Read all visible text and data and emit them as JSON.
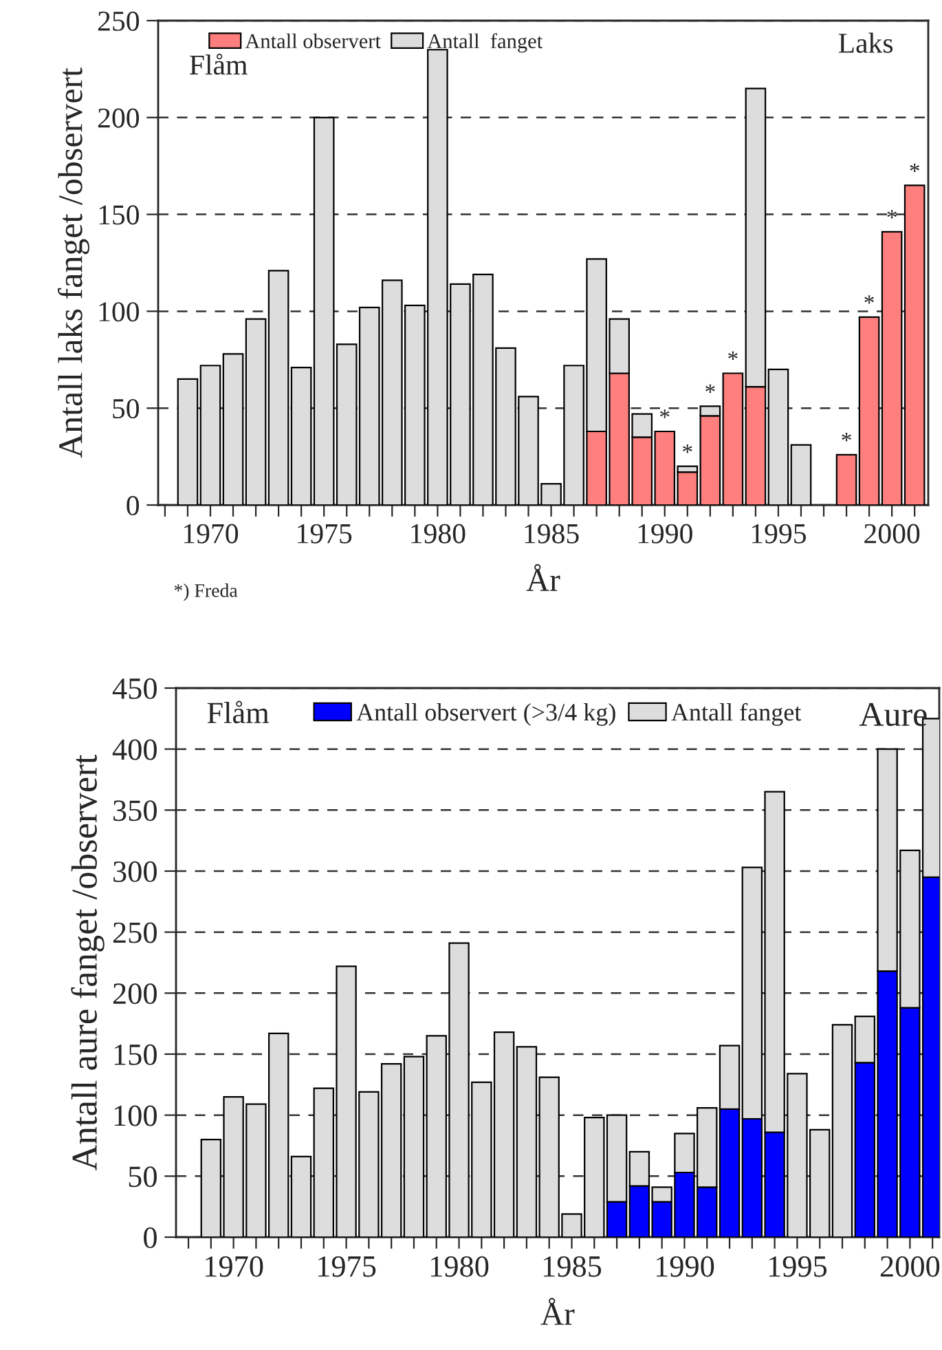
{
  "chart_data": [
    {
      "type": "bar",
      "stacked": true,
      "xlabel": "År",
      "ylabel": "Antall laks fanget /observert",
      "x": [
        1969,
        1970,
        1971,
        1972,
        1973,
        1974,
        1975,
        1976,
        1977,
        1978,
        1979,
        1980,
        1981,
        1982,
        1983,
        1984,
        1985,
        1986,
        1987,
        1988,
        1989,
        1990,
        1991,
        1992,
        1993,
        1994,
        1995,
        1996,
        1997,
        1998,
        1999,
        2000,
        2001
      ],
      "series": [
        {
          "name": "Antall observert",
          "color": "#ff7f7f",
          "values": [
            null,
            null,
            null,
            null,
            null,
            null,
            null,
            null,
            null,
            null,
            null,
            null,
            null,
            null,
            null,
            null,
            null,
            null,
            38,
            68,
            35,
            38,
            17,
            46,
            68,
            61,
            null,
            null,
            null,
            26,
            97,
            141,
            165
          ]
        },
        {
          "name": "Antall  fanget",
          "color": "#dddddd",
          "values": [
            65,
            72,
            78,
            96,
            121,
            71,
            200,
            83,
            102,
            116,
            103,
            235,
            114,
            119,
            81,
            56,
            11,
            72,
            89,
            28,
            12,
            null,
            3,
            5,
            null,
            154,
            70,
            31,
            null,
            null,
            null,
            null,
            null
          ]
        }
      ],
      "xlim": [
        1967.7,
        2001.6
      ],
      "xticks": [
        {
          "value": 1968,
          "label": null
        },
        {
          "value": 1969,
          "label": null
        },
        1970,
        {
          "value": 1971,
          "label": null
        },
        {
          "value": 1972,
          "label": null
        },
        {
          "value": 1973,
          "label": null
        },
        {
          "value": 1974,
          "label": null
        },
        1975,
        {
          "value": 1976,
          "label": null
        },
        {
          "value": 1977,
          "label": null
        },
        {
          "value": 1978,
          "label": null
        },
        {
          "value": 1979,
          "label": null
        },
        1980,
        {
          "value": 1981,
          "label": null
        },
        {
          "value": 1982,
          "label": null
        },
        {
          "value": 1983,
          "label": null
        },
        {
          "value": 1984,
          "label": null
        },
        1985,
        {
          "value": 1986,
          "label": null
        },
        {
          "value": 1987,
          "label": null
        },
        {
          "value": 1988,
          "label": null
        },
        {
          "value": 1989,
          "label": null
        },
        1990,
        {
          "value": 1991,
          "label": null
        },
        {
          "value": 1992,
          "label": null
        },
        {
          "value": 1993,
          "label": null
        },
        {
          "value": 1994,
          "label": null
        },
        1995,
        {
          "value": 1996,
          "label": null
        },
        {
          "value": 1997,
          "label": null
        },
        {
          "value": 1998,
          "label": null
        },
        {
          "value": 1999,
          "label": null
        },
        2000,
        {
          "value": 2001,
          "label": null
        }
      ],
      "ylim": [
        0,
        250
      ],
      "yticks": [
        0,
        50,
        100,
        150,
        200,
        250
      ],
      "grid": "y",
      "legend": "top left",
      "annotations": [
        "Flåm",
        "Laks",
        "*) Freda",
        {
          "text": "*",
          "x": 1990,
          "y": 38
        },
        {
          "text": "*",
          "x": 1991,
          "y": 20
        },
        {
          "text": "*",
          "x": 1992,
          "y": 51
        },
        {
          "text": "*",
          "x": 1993,
          "y": 68
        },
        {
          "text": "*",
          "x": 1998,
          "y": 26
        },
        {
          "text": "*",
          "x": 1999,
          "y": 97
        },
        {
          "text": "*",
          "x": 2000,
          "y": 141
        },
        {
          "text": "*",
          "x": 2001,
          "y": 165
        }
      ]
    },
    {
      "type": "bar",
      "stacked": true,
      "xlabel": "År",
      "ylabel": "Antall aure fanget /observert",
      "x": [
        1969,
        1970,
        1971,
        1972,
        1973,
        1974,
        1975,
        1976,
        1977,
        1978,
        1979,
        1980,
        1981,
        1982,
        1983,
        1984,
        1985,
        1986,
        1987,
        1988,
        1989,
        1990,
        1991,
        1992,
        1993,
        1994,
        1995,
        1996,
        1997,
        1998,
        1999,
        2000,
        2001
      ],
      "series": [
        {
          "name": "Antall observert (>3/4 kg)",
          "color": "#0000ff",
          "values": [
            null,
            null,
            null,
            null,
            null,
            null,
            null,
            null,
            null,
            null,
            null,
            null,
            null,
            null,
            null,
            null,
            null,
            null,
            29,
            42,
            29,
            53,
            41,
            105,
            97,
            86,
            null,
            null,
            null,
            143,
            218,
            188,
            295
          ]
        },
        {
          "name": "Antall fanget",
          "color": "#dddddd",
          "values": [
            80,
            115,
            109,
            167,
            66,
            122,
            222,
            119,
            142,
            148,
            165,
            241,
            127,
            168,
            156,
            131,
            19,
            98,
            71,
            28,
            12,
            32,
            65,
            52,
            206,
            279,
            134,
            88,
            174,
            38,
            182,
            129,
            130
          ]
        }
      ],
      "xlim": [
        1967.45,
        2001.3
      ],
      "xticks": [
        {
          "value": 1968,
          "label": null
        },
        {
          "value": 1969,
          "label": null
        },
        1970,
        {
          "value": 1971,
          "label": null
        },
        {
          "value": 1972,
          "label": null
        },
        {
          "value": 1973,
          "label": null
        },
        {
          "value": 1974,
          "label": null
        },
        1975,
        {
          "value": 1976,
          "label": null
        },
        {
          "value": 1977,
          "label": null
        },
        {
          "value": 1978,
          "label": null
        },
        {
          "value": 1979,
          "label": null
        },
        1980,
        {
          "value": 1981,
          "label": null
        },
        {
          "value": 1982,
          "label": null
        },
        {
          "value": 1983,
          "label": null
        },
        {
          "value": 1984,
          "label": null
        },
        1985,
        {
          "value": 1986,
          "label": null
        },
        {
          "value": 1987,
          "label": null
        },
        {
          "value": 1988,
          "label": null
        },
        {
          "value": 1989,
          "label": null
        },
        1990,
        {
          "value": 1991,
          "label": null
        },
        {
          "value": 1992,
          "label": null
        },
        {
          "value": 1993,
          "label": null
        },
        {
          "value": 1994,
          "label": null
        },
        1995,
        {
          "value": 1996,
          "label": null
        },
        {
          "value": 1997,
          "label": null
        },
        {
          "value": 1998,
          "label": null
        },
        {
          "value": 1999,
          "label": null
        },
        2000,
        {
          "value": 2001,
          "label": null
        }
      ],
      "ylim": [
        0,
        450
      ],
      "yticks": [
        0,
        50,
        100,
        150,
        200,
        250,
        300,
        350,
        400,
        450
      ],
      "grid": "y",
      "legend": "top",
      "annotations": [
        "Flåm",
        "Aure"
      ]
    }
  ]
}
